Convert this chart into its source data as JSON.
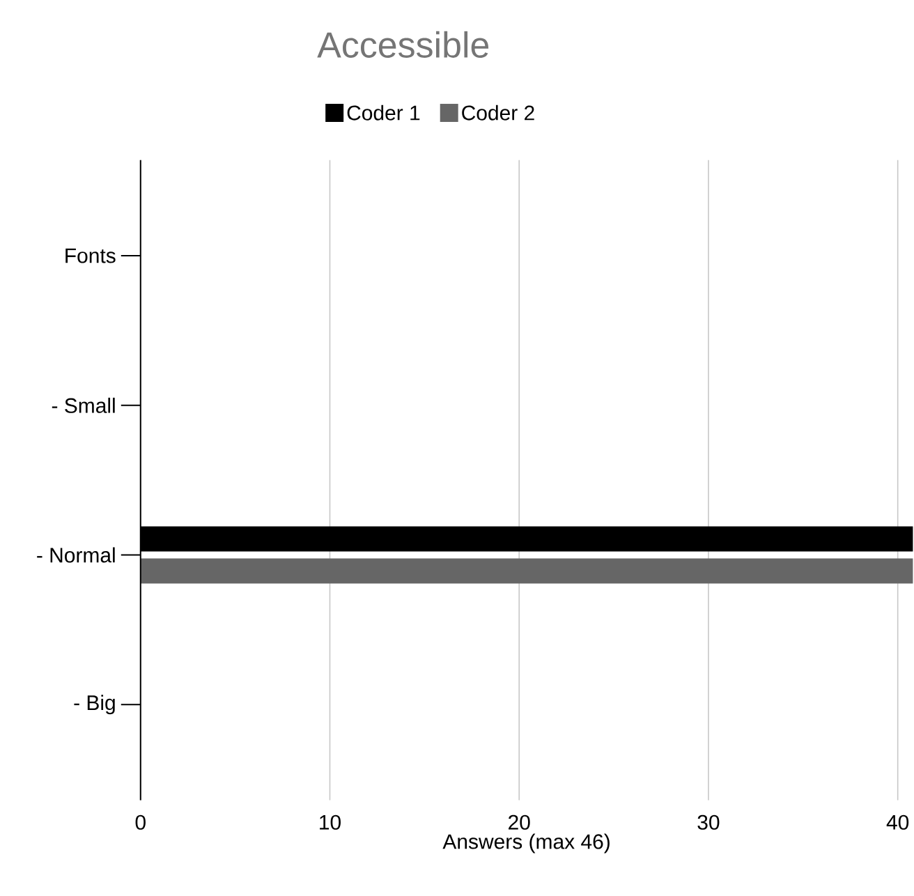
{
  "chart_data": {
    "type": "bar",
    "orientation": "horizontal",
    "title": "Accessible",
    "xlabel": "Answers (max 46)",
    "categories": [
      "Fonts",
      "- Small",
      "- Normal",
      "- Big"
    ],
    "series": [
      {
        "name": "Coder 1",
        "color": "#000000",
        "values": [
          null,
          null,
          40.8,
          null
        ]
      },
      {
        "name": "Coder 2",
        "color": "#666666",
        "values": [
          null,
          null,
          40.8,
          null
        ]
      }
    ],
    "xlim": [
      0,
      40.8
    ],
    "xticks": [
      0,
      10,
      20,
      30,
      40
    ],
    "grid": "x",
    "legend": "top"
  }
}
